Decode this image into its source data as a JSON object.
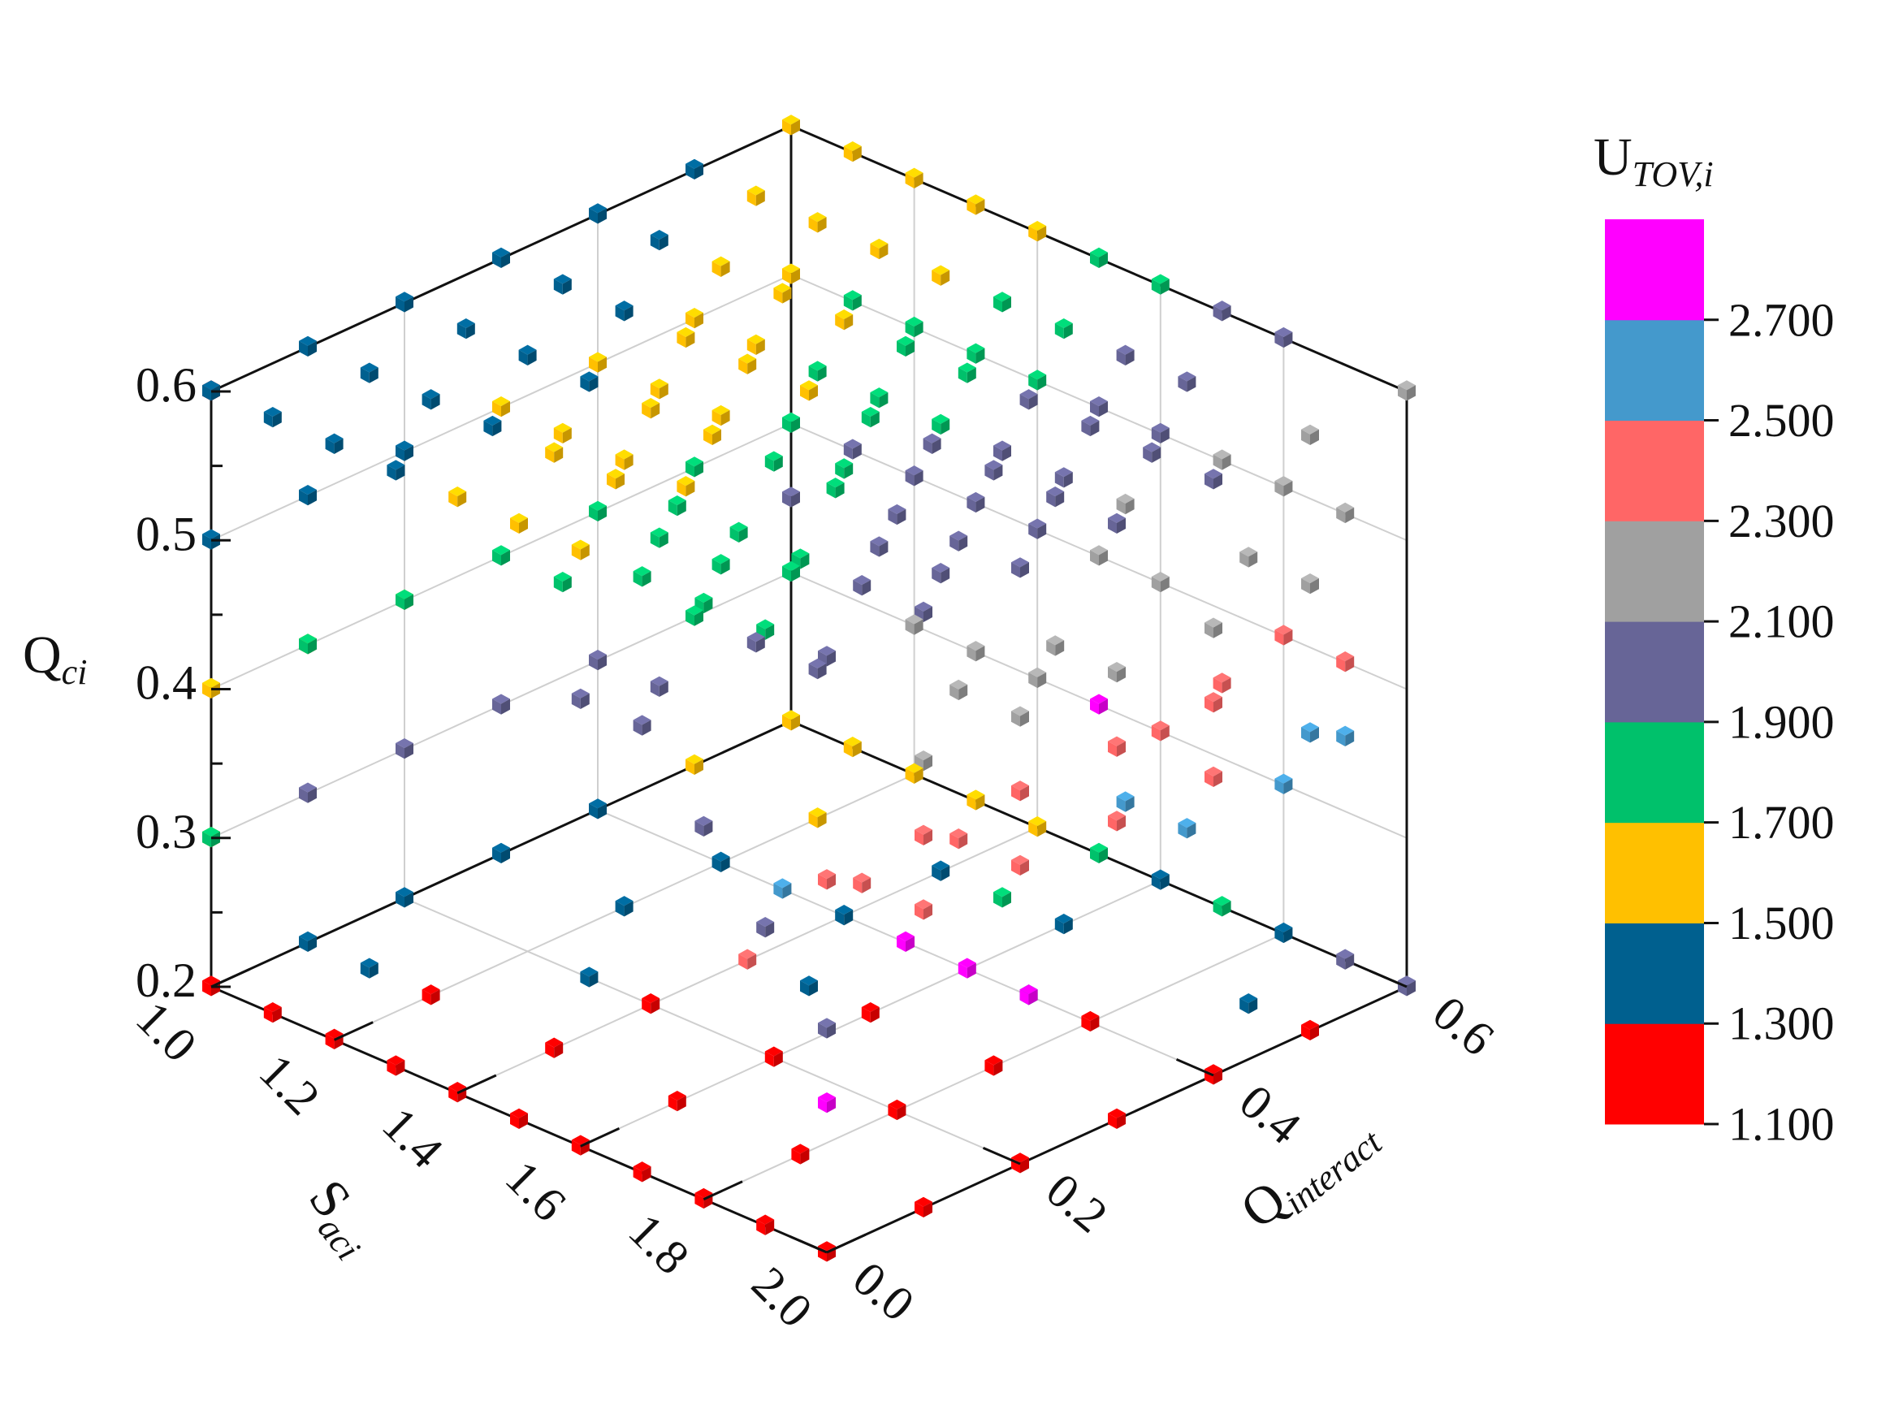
{
  "chart_data": {
    "type": "scatter",
    "subtype": "3d-scatter-cubes",
    "axes": {
      "z": {
        "title_main": "Q",
        "title_sub": "ci",
        "range": [
          0.2,
          0.6
        ],
        "ticks": [
          "0.2",
          "0.3",
          "0.4",
          "0.5",
          "0.6"
        ]
      },
      "x": {
        "title_main": "S",
        "title_sub": "aci",
        "range": [
          1.0,
          2.0
        ],
        "ticks": [
          "1.0",
          "1.2",
          "1.4",
          "1.6",
          "1.8",
          "2.0"
        ]
      },
      "y": {
        "title_main": "Q",
        "title_sub": "interact",
        "range": [
          0.0,
          0.6
        ],
        "ticks": [
          "0.0",
          "0.2",
          "0.4",
          "0.6"
        ]
      }
    },
    "grid": true,
    "legend": "right",
    "colorbar": {
      "title_main": "U",
      "title_sub": "TOV,i",
      "placement": "right",
      "boundaries": [
        "1.100",
        "1.300",
        "1.500",
        "1.700",
        "1.900",
        "2.100",
        "2.300",
        "2.500",
        "2.700"
      ],
      "colors": [
        "#ff0000",
        "#00608f",
        "#ffc000",
        "#00c16b",
        "#676597",
        "#a0a0a0",
        "#ff6666",
        "#4499cc",
        "#ff00ff"
      ]
    },
    "series": [
      {
        "name": "",
        "color_index": 0,
        "points": [
          [
            1.0,
            0.0,
            0.2
          ],
          [
            1.1,
            0.0,
            0.2
          ],
          [
            1.2,
            0.0,
            0.2
          ],
          [
            1.3,
            0.0,
            0.2
          ],
          [
            1.4,
            0.0,
            0.2
          ],
          [
            1.5,
            0.0,
            0.2
          ],
          [
            1.6,
            0.0,
            0.2
          ],
          [
            1.7,
            0.0,
            0.2
          ],
          [
            1.8,
            0.0,
            0.2
          ],
          [
            1.9,
            0.0,
            0.2
          ],
          [
            2.0,
            0.0,
            0.2
          ],
          [
            1.2,
            0.1,
            0.2
          ],
          [
            1.4,
            0.1,
            0.2
          ],
          [
            1.6,
            0.1,
            0.2
          ],
          [
            1.8,
            0.1,
            0.2
          ],
          [
            2.0,
            0.1,
            0.2
          ],
          [
            1.4,
            0.2,
            0.2
          ],
          [
            1.6,
            0.2,
            0.2
          ],
          [
            1.8,
            0.2,
            0.2
          ],
          [
            2.0,
            0.2,
            0.2
          ],
          [
            1.6,
            0.3,
            0.2
          ],
          [
            1.8,
            0.3,
            0.2
          ],
          [
            2.0,
            0.3,
            0.2
          ],
          [
            1.8,
            0.4,
            0.2
          ],
          [
            2.0,
            0.4,
            0.2
          ],
          [
            2.0,
            0.5,
            0.2
          ],
          [
            1.0,
            0.0,
            0.6
          ]
        ]
      },
      {
        "name": "",
        "color_index": 1,
        "points": [
          [
            1.0,
            0.1,
            0.2
          ],
          [
            1.0,
            0.2,
            0.2
          ],
          [
            1.2,
            0.3,
            0.2
          ],
          [
            1.4,
            0.4,
            0.2
          ],
          [
            1.6,
            0.5,
            0.2
          ],
          [
            1.8,
            0.6,
            0.2
          ],
          [
            1.9,
            0.5,
            0.2
          ],
          [
            1.7,
            0.4,
            0.2
          ],
          [
            1.5,
            0.3,
            0.2
          ],
          [
            1.3,
            0.2,
            0.2
          ],
          [
            1.1,
            0.1,
            0.2
          ],
          [
            1.0,
            0.3,
            0.2
          ],
          [
            1.2,
            0.4,
            0.2
          ],
          [
            1.4,
            0.5,
            0.2
          ],
          [
            1.6,
            0.6,
            0.2
          ],
          [
            1.0,
            0.4,
            0.2
          ],
          [
            1.0,
            0.0,
            0.5
          ],
          [
            1.0,
            0.1,
            0.5
          ],
          [
            1.0,
            0.2,
            0.5
          ],
          [
            1.0,
            0.0,
            0.6
          ],
          [
            1.0,
            0.1,
            0.6
          ],
          [
            1.0,
            0.2,
            0.6
          ],
          [
            1.0,
            0.3,
            0.6
          ],
          [
            1.0,
            0.4,
            0.6
          ],
          [
            1.0,
            0.5,
            0.6
          ],
          [
            1.1,
            0.0,
            0.6
          ],
          [
            1.1,
            0.1,
            0.6
          ],
          [
            1.1,
            0.2,
            0.6
          ],
          [
            1.1,
            0.3,
            0.6
          ],
          [
            1.1,
            0.4,
            0.6
          ],
          [
            1.2,
            0.0,
            0.6
          ],
          [
            1.2,
            0.1,
            0.6
          ],
          [
            1.2,
            0.2,
            0.6
          ],
          [
            1.2,
            0.3,
            0.6
          ],
          [
            1.3,
            0.0,
            0.6
          ],
          [
            1.3,
            0.1,
            0.6
          ],
          [
            1.3,
            0.2,
            0.6
          ]
        ]
      },
      {
        "name": "",
        "color_index": 2,
        "points": [
          [
            1.0,
            0.5,
            0.2
          ],
          [
            1.0,
            0.6,
            0.2
          ],
          [
            1.2,
            0.5,
            0.2
          ],
          [
            1.2,
            0.6,
            0.2
          ],
          [
            1.4,
            0.6,
            0.2
          ],
          [
            1.1,
            0.6,
            0.2
          ],
          [
            1.3,
            0.6,
            0.2
          ],
          [
            1.0,
            0.0,
            0.4
          ],
          [
            1.0,
            0.1,
            0.4
          ],
          [
            1.0,
            0.2,
            0.4
          ],
          [
            1.0,
            0.3,
            0.5
          ],
          [
            1.0,
            0.4,
            0.5
          ],
          [
            1.0,
            0.5,
            0.5
          ],
          [
            1.0,
            0.6,
            0.5
          ],
          [
            1.1,
            0.3,
            0.5
          ],
          [
            1.1,
            0.4,
            0.5
          ],
          [
            1.1,
            0.5,
            0.5
          ],
          [
            1.2,
            0.3,
            0.5
          ],
          [
            1.2,
            0.4,
            0.5
          ],
          [
            1.3,
            0.3,
            0.5
          ],
          [
            1.0,
            0.6,
            0.6
          ],
          [
            1.1,
            0.5,
            0.6
          ],
          [
            1.1,
            0.6,
            0.6
          ],
          [
            1.2,
            0.4,
            0.6
          ],
          [
            1.2,
            0.5,
            0.6
          ],
          [
            1.2,
            0.6,
            0.6
          ],
          [
            1.3,
            0.3,
            0.6
          ],
          [
            1.3,
            0.4,
            0.6
          ],
          [
            1.3,
            0.5,
            0.6
          ],
          [
            1.3,
            0.6,
            0.6
          ],
          [
            1.4,
            0.0,
            0.6
          ],
          [
            1.4,
            0.1,
            0.6
          ],
          [
            1.4,
            0.2,
            0.6
          ],
          [
            1.4,
            0.3,
            0.6
          ],
          [
            1.4,
            0.4,
            0.6
          ],
          [
            1.4,
            0.5,
            0.6
          ],
          [
            1.4,
            0.6,
            0.6
          ],
          [
            1.5,
            0.0,
            0.6
          ],
          [
            1.5,
            0.1,
            0.6
          ],
          [
            1.5,
            0.2,
            0.6
          ],
          [
            1.5,
            0.3,
            0.6
          ],
          [
            1.6,
            0.0,
            0.6
          ],
          [
            1.0,
            0.0,
            0.3
          ]
        ]
      },
      {
        "name": "",
        "color_index": 3,
        "points": [
          [
            1.0,
            0.0,
            0.3
          ],
          [
            1.0,
            0.1,
            0.4
          ],
          [
            1.0,
            0.2,
            0.4
          ],
          [
            1.0,
            0.3,
            0.4
          ],
          [
            1.0,
            0.4,
            0.4
          ],
          [
            1.1,
            0.3,
            0.4
          ],
          [
            1.1,
            0.4,
            0.4
          ],
          [
            1.2,
            0.4,
            0.4
          ],
          [
            1.0,
            0.5,
            0.4
          ],
          [
            1.0,
            0.6,
            0.4
          ],
          [
            1.1,
            0.6,
            0.5
          ],
          [
            1.2,
            0.6,
            0.5
          ],
          [
            1.3,
            0.6,
            0.5
          ],
          [
            1.2,
            0.5,
            0.5
          ],
          [
            1.3,
            0.5,
            0.5
          ],
          [
            1.4,
            0.5,
            0.5
          ],
          [
            1.4,
            0.6,
            0.5
          ],
          [
            1.4,
            0.4,
            0.5
          ],
          [
            1.5,
            0.4,
            0.6
          ],
          [
            1.5,
            0.5,
            0.6
          ],
          [
            1.5,
            0.6,
            0.6
          ],
          [
            1.6,
            0.1,
            0.6
          ],
          [
            1.6,
            0.2,
            0.6
          ],
          [
            1.6,
            0.3,
            0.6
          ],
          [
            1.6,
            0.4,
            0.6
          ],
          [
            1.6,
            0.5,
            0.6
          ],
          [
            1.6,
            0.6,
            0.6
          ],
          [
            1.7,
            0.0,
            0.6
          ],
          [
            1.7,
            0.1,
            0.6
          ],
          [
            1.7,
            0.2,
            0.6
          ],
          [
            1.8,
            0.0,
            0.6
          ],
          [
            1.8,
            0.1,
            0.6
          ],
          [
            1.9,
            0.0,
            0.6
          ],
          [
            1.0,
            0.5,
            0.3
          ],
          [
            1.0,
            0.6,
            0.3
          ],
          [
            1.5,
            0.5,
            0.2
          ],
          [
            1.5,
            0.6,
            0.2
          ],
          [
            1.7,
            0.6,
            0.2
          ]
        ]
      },
      {
        "name": "",
        "color_index": 4,
        "points": [
          [
            1.0,
            0.1,
            0.3
          ],
          [
            1.0,
            0.2,
            0.3
          ],
          [
            1.0,
            0.3,
            0.3
          ],
          [
            1.0,
            0.4,
            0.3
          ],
          [
            1.1,
            0.4,
            0.3
          ],
          [
            1.1,
            0.5,
            0.3
          ],
          [
            1.2,
            0.5,
            0.3
          ],
          [
            1.0,
            0.6,
            0.35
          ],
          [
            1.1,
            0.6,
            0.4
          ],
          [
            1.2,
            0.6,
            0.4
          ],
          [
            1.3,
            0.6,
            0.4
          ],
          [
            1.4,
            0.6,
            0.4
          ],
          [
            1.3,
            0.5,
            0.4
          ],
          [
            1.4,
            0.5,
            0.4
          ],
          [
            1.5,
            0.5,
            0.5
          ],
          [
            1.5,
            0.6,
            0.5
          ],
          [
            1.6,
            0.6,
            0.5
          ],
          [
            1.6,
            0.5,
            0.5
          ],
          [
            1.7,
            0.3,
            0.6
          ],
          [
            1.7,
            0.4,
            0.6
          ],
          [
            1.7,
            0.5,
            0.6
          ],
          [
            1.7,
            0.6,
            0.6
          ],
          [
            1.8,
            0.2,
            0.6
          ],
          [
            1.8,
            0.3,
            0.6
          ],
          [
            1.8,
            0.4,
            0.6
          ],
          [
            1.8,
            0.5,
            0.6
          ],
          [
            1.8,
            0.6,
            0.6
          ],
          [
            1.9,
            0.1,
            0.6
          ],
          [
            1.9,
            0.2,
            0.6
          ],
          [
            1.9,
            0.3,
            0.6
          ],
          [
            1.9,
            0.4,
            0.6
          ],
          [
            2.0,
            0.0,
            0.6
          ],
          [
            2.0,
            0.1,
            0.6
          ],
          [
            2.0,
            0.2,
            0.6
          ],
          [
            2.0,
            0.3,
            0.6
          ],
          [
            2.0,
            0.4,
            0.6
          ],
          [
            1.6,
            0.0,
            0.5
          ],
          [
            1.7,
            0.0,
            0.5
          ],
          [
            1.8,
            0.0,
            0.45
          ],
          [
            1.9,
            0.0,
            0.4
          ],
          [
            2.0,
            0.0,
            0.35
          ],
          [
            1.9,
            0.6,
            0.2
          ],
          [
            2.0,
            0.6,
            0.2
          ]
        ]
      },
      {
        "name": "",
        "color_index": 5,
        "points": [
          [
            1.2,
            0.6,
            0.3
          ],
          [
            1.3,
            0.6,
            0.3
          ],
          [
            1.4,
            0.6,
            0.3
          ],
          [
            1.5,
            0.6,
            0.4
          ],
          [
            1.6,
            0.6,
            0.4
          ],
          [
            1.7,
            0.6,
            0.5
          ],
          [
            1.8,
            0.6,
            0.5
          ],
          [
            1.7,
            0.5,
            0.5
          ],
          [
            1.9,
            0.5,
            0.5
          ],
          [
            1.9,
            0.6,
            0.5
          ],
          [
            2.0,
            0.5,
            0.6
          ],
          [
            2.0,
            0.6,
            0.6
          ],
          [
            2.0,
            0.1,
            0.5
          ],
          [
            2.0,
            0.2,
            0.5
          ],
          [
            2.0,
            0.3,
            0.5
          ],
          [
            2.0,
            0.4,
            0.5
          ],
          [
            2.0,
            0.5,
            0.5
          ],
          [
            1.9,
            0.2,
            0.5
          ],
          [
            1.9,
            0.3,
            0.5
          ]
        ]
      },
      {
        "name": "",
        "color_index": 6,
        "points": [
          [
            1.6,
            0.6,
            0.3
          ],
          [
            1.7,
            0.6,
            0.35
          ],
          [
            1.8,
            0.6,
            0.4
          ],
          [
            1.9,
            0.6,
            0.4
          ],
          [
            2.0,
            0.0,
            0.45
          ],
          [
            2.0,
            0.1,
            0.45
          ],
          [
            2.0,
            0.2,
            0.45
          ],
          [
            2.0,
            0.3,
            0.45
          ],
          [
            2.0,
            0.4,
            0.45
          ],
          [
            2.0,
            0.1,
            0.4
          ],
          [
            2.0,
            0.2,
            0.4
          ],
          [
            2.0,
            0.3,
            0.4
          ],
          [
            2.0,
            0.4,
            0.4
          ],
          [
            1.9,
            0.1,
            0.4
          ],
          [
            1.9,
            0.2,
            0.4
          ],
          [
            1.4,
            0.3,
            0.2
          ]
        ]
      },
      {
        "name": "",
        "color_index": 7,
        "points": [
          [
            1.8,
            0.6,
            0.3
          ],
          [
            1.9,
            0.6,
            0.35
          ],
          [
            2.0,
            0.5,
            0.4
          ],
          [
            1.3,
            0.4,
            0.2
          ],
          [
            1.7,
            0.5,
            0.3
          ],
          [
            1.8,
            0.5,
            0.3
          ]
        ]
      },
      {
        "name": "",
        "color_index": 8,
        "points": [
          [
            1.5,
            0.4,
            0.2
          ],
          [
            1.6,
            0.4,
            0.2
          ],
          [
            1.7,
            0.4,
            0.2
          ],
          [
            2.0,
            0.0,
            0.3
          ],
          [
            1.5,
            0.6,
            0.3
          ]
        ]
      }
    ]
  }
}
